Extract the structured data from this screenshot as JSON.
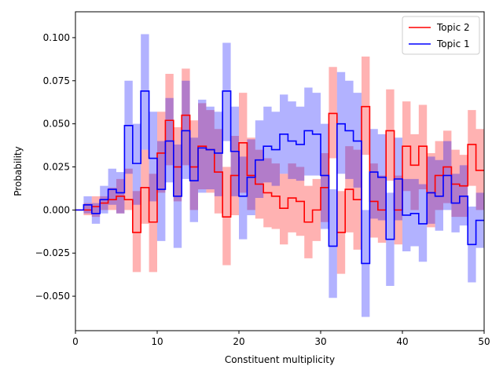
{
  "chart_data": {
    "type": "line",
    "title": "",
    "xlabel": "Constituent multiplicity",
    "ylabel": "Probability",
    "xlim": [
      0,
      50
    ],
    "ylim": [
      -0.07,
      0.115
    ],
    "xticks": [
      0,
      10,
      20,
      30,
      40,
      50
    ],
    "yticks": [
      -0.05,
      -0.025,
      0.0,
      0.025,
      0.05,
      0.075,
      0.1
    ],
    "xtick_labels": [
      "0",
      "10",
      "20",
      "30",
      "40",
      "50"
    ],
    "ytick_labels": [
      "−0.050",
      "−0.025",
      "0.000",
      "0.025",
      "0.050",
      "0.075",
      "0.100"
    ],
    "grid": false,
    "legend_position": "top-right",
    "step": "post",
    "band": "uncertainty",
    "x": [
      0,
      1,
      2,
      3,
      4,
      5,
      6,
      7,
      8,
      9,
      10,
      11,
      12,
      13,
      14,
      15,
      16,
      17,
      18,
      19,
      20,
      21,
      22,
      23,
      24,
      25,
      26,
      27,
      28,
      29,
      30,
      31,
      32,
      33,
      34,
      35,
      36,
      37,
      38,
      39,
      40,
      41,
      42,
      43,
      44,
      45,
      46,
      47,
      48,
      49,
      50
    ],
    "series": [
      {
        "name": "Topic 2",
        "color": "#ff0000",
        "band_color": "#ff0000",
        "values": [
          0.0,
          0.0,
          0.002,
          0.004,
          0.006,
          0.008,
          0.006,
          -0.013,
          0.013,
          -0.007,
          0.033,
          0.052,
          0.025,
          0.055,
          0.025,
          0.037,
          0.035,
          0.022,
          -0.004,
          0.02,
          0.039,
          0.02,
          0.015,
          0.01,
          0.008,
          0.001,
          0.007,
          0.005,
          -0.007,
          0.0,
          0.013,
          0.056,
          -0.013,
          0.012,
          0.006,
          0.06,
          0.005,
          0.0,
          0.046,
          0.0,
          0.037,
          0.026,
          0.037,
          0.01,
          0.02,
          0.025,
          0.015,
          0.014,
          0.038,
          0.023,
          0.02
        ],
        "lower": [
          0.0,
          -0.003,
          -0.004,
          0.0,
          0.0,
          -0.002,
          0.0,
          -0.036,
          -0.008,
          -0.036,
          0.01,
          0.026,
          0.005,
          0.026,
          0.0,
          0.012,
          0.01,
          -0.002,
          -0.032,
          -0.003,
          0.01,
          0.0,
          -0.005,
          -0.01,
          -0.011,
          -0.02,
          -0.013,
          -0.015,
          -0.028,
          -0.018,
          -0.007,
          0.03,
          -0.037,
          -0.013,
          -0.023,
          0.032,
          -0.016,
          -0.019,
          0.017,
          -0.02,
          0.011,
          0.0,
          0.012,
          -0.01,
          0.0,
          0.004,
          -0.004,
          -0.004,
          0.014,
          0.0,
          -0.003
        ],
        "upper": [
          0.0,
          0.004,
          0.008,
          0.008,
          0.013,
          0.018,
          0.024,
          0.011,
          0.035,
          0.021,
          0.057,
          0.079,
          0.048,
          0.082,
          0.052,
          0.062,
          0.058,
          0.047,
          0.025,
          0.043,
          0.068,
          0.042,
          0.035,
          0.03,
          0.027,
          0.021,
          0.027,
          0.025,
          0.014,
          0.018,
          0.033,
          0.083,
          0.011,
          0.037,
          0.035,
          0.089,
          0.027,
          0.02,
          0.07,
          0.02,
          0.063,
          0.044,
          0.061,
          0.033,
          0.04,
          0.046,
          0.035,
          0.032,
          0.058,
          0.047,
          0.045
        ]
      },
      {
        "name": "Topic 1",
        "color": "#0000ff",
        "band_color": "#0000ff",
        "values": [
          0.0,
          0.003,
          -0.002,
          0.006,
          0.012,
          0.01,
          0.049,
          0.027,
          0.069,
          0.03,
          0.012,
          0.04,
          0.008,
          0.046,
          0.017,
          0.036,
          0.035,
          0.033,
          0.069,
          0.034,
          0.008,
          0.019,
          0.029,
          0.037,
          0.035,
          0.044,
          0.04,
          0.038,
          0.046,
          0.044,
          0.02,
          -0.021,
          0.05,
          0.046,
          0.04,
          -0.031,
          0.022,
          0.019,
          -0.017,
          0.018,
          -0.003,
          -0.002,
          -0.008,
          0.01,
          0.008,
          0.02,
          0.004,
          0.008,
          -0.02,
          -0.006,
          0.004
        ],
        "lower": [
          0.0,
          -0.002,
          -0.008,
          -0.002,
          0.003,
          -0.002,
          0.021,
          0.003,
          0.035,
          0.005,
          -0.018,
          0.016,
          -0.022,
          0.018,
          -0.007,
          0.01,
          0.012,
          0.008,
          0.04,
          0.008,
          -0.017,
          -0.003,
          0.007,
          0.016,
          0.014,
          0.021,
          0.018,
          0.017,
          0.02,
          0.02,
          -0.011,
          -0.051,
          0.021,
          0.018,
          0.013,
          -0.062,
          -0.005,
          -0.006,
          -0.044,
          -0.006,
          -0.024,
          -0.021,
          -0.03,
          -0.008,
          -0.012,
          0.0,
          -0.013,
          -0.009,
          -0.042,
          -0.022,
          -0.01
        ],
        "upper": [
          0.0,
          0.008,
          0.004,
          0.014,
          0.024,
          0.022,
          0.075,
          0.05,
          0.102,
          0.057,
          0.04,
          0.065,
          0.038,
          0.075,
          0.042,
          0.064,
          0.06,
          0.057,
          0.097,
          0.06,
          0.031,
          0.041,
          0.052,
          0.06,
          0.057,
          0.067,
          0.063,
          0.06,
          0.071,
          0.068,
          0.05,
          0.012,
          0.08,
          0.075,
          0.068,
          0.0,
          0.047,
          0.044,
          0.01,
          0.042,
          0.018,
          0.018,
          0.015,
          0.031,
          0.029,
          0.04,
          0.021,
          0.026,
          0.002,
          0.01,
          0.018
        ]
      }
    ]
  }
}
